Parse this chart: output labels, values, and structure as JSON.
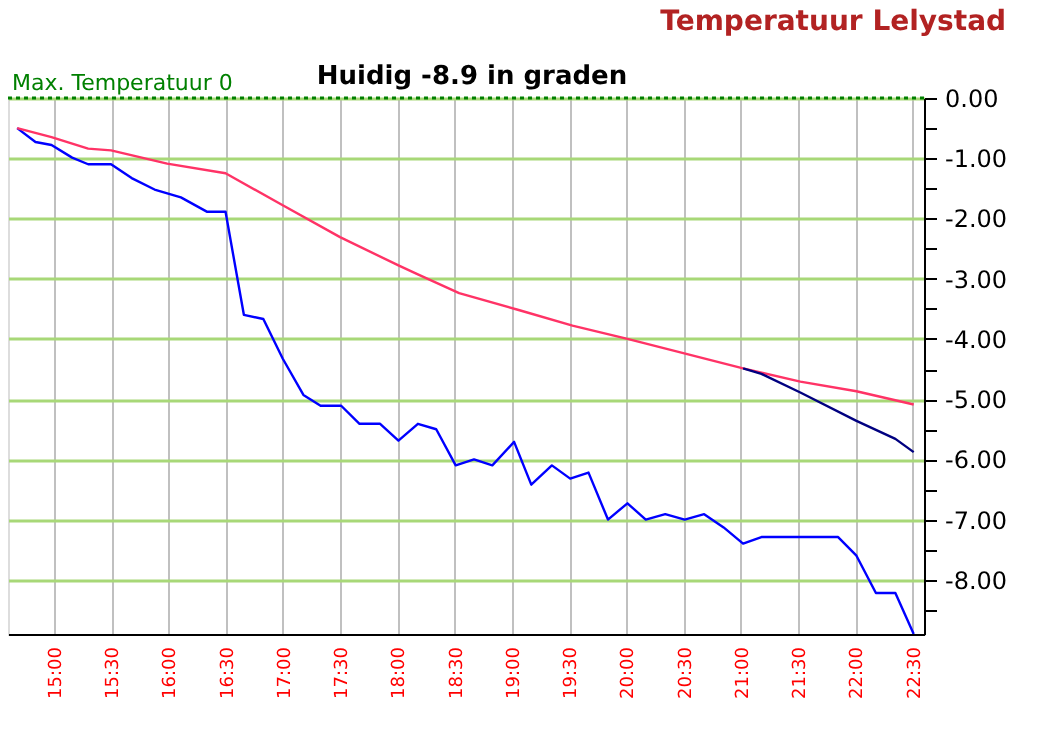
{
  "chart_data": {
    "type": "line",
    "title": "Temperatuur Lelystad",
    "subtitle": "Huidig -8.9 in graden",
    "x": [
      14.68,
      14.84,
      14.98,
      15.16,
      15.3,
      15.5,
      15.68,
      15.88,
      16.11,
      16.34,
      16.5,
      16.66,
      16.83,
      17.0,
      17.18,
      17.33,
      17.51,
      17.67,
      17.85,
      18.01,
      18.18,
      18.34,
      18.51,
      18.67,
      18.83,
      19.02,
      19.17,
      19.35,
      19.51,
      19.67,
      19.84,
      20.01,
      20.17,
      20.34,
      20.51,
      20.68,
      20.85,
      21.02,
      21.18,
      21.85,
      22.01,
      22.18,
      22.35,
      22.51
    ],
    "series": [
      {
        "color": "#0000ff",
        "values": [
          -0.5,
          -0.73,
          -0.78,
          -0.99,
          -1.1,
          -1.1,
          -1.33,
          -1.52,
          -1.65,
          -1.89,
          -1.89,
          -3.6,
          -3.67,
          -4.33,
          -4.93,
          -5.11,
          -5.11,
          -5.41,
          -5.41,
          -5.69,
          -5.41,
          -5.5,
          -6.1,
          -6.0,
          -6.1,
          -5.71,
          -6.42,
          -6.1,
          -6.32,
          -6.22,
          -7.0,
          -6.73,
          -7.0,
          -6.91,
          -7.0,
          -6.91,
          -7.13,
          -7.4,
          -7.29,
          -7.29,
          -7.6,
          -8.22,
          -8.22,
          -8.9
        ]
      },
      {
        "color": "#ff3366",
        "x": [
          14.68,
          14.98,
          15.3,
          15.5,
          15.99,
          16.5,
          16.98,
          17.5,
          18.01,
          18.17,
          18.54,
          19.06,
          19.53,
          20.01,
          21.02,
          21.52,
          22.01,
          22.51
        ],
        "values": [
          -0.5,
          -0.65,
          -0.84,
          -0.87,
          -1.09,
          -1.25,
          -1.76,
          -2.31,
          -2.78,
          -2.92,
          -3.24,
          -3.52,
          -3.78,
          -4.0,
          -4.49,
          -4.71,
          -4.87,
          -5.09
        ]
      },
      {
        "color": "#000080",
        "x": [
          21.02,
          21.18,
          21.52,
          22.01,
          22.35,
          22.51
        ],
        "values": [
          -4.49,
          -4.58,
          -4.89,
          -5.36,
          -5.66,
          -5.88
        ]
      }
    ],
    "xlim": [
      14.6,
      22.6
    ],
    "xticks": [
      {
        "value": 15,
        "label": "15:00"
      },
      {
        "value": 15.5,
        "label": "15:30"
      },
      {
        "value": 16,
        "label": "16:00"
      },
      {
        "value": 16.5,
        "label": "16:30"
      },
      {
        "value": 17,
        "label": "17:00"
      },
      {
        "value": 17.5,
        "label": "17:30"
      },
      {
        "value": 18,
        "label": "18:00"
      },
      {
        "value": 18.5,
        "label": "18:30"
      },
      {
        "value": 19,
        "label": "19:00"
      },
      {
        "value": 19.5,
        "label": "19:30"
      },
      {
        "value": 20,
        "label": "20:00"
      },
      {
        "value": 20.5,
        "label": "20:30"
      },
      {
        "value": 21,
        "label": "21:00"
      },
      {
        "value": 21.5,
        "label": "21:30"
      },
      {
        "value": 22,
        "label": "22:00"
      },
      {
        "value": 22.5,
        "label": "22:30"
      }
    ],
    "ylim": [
      -8.9,
      0
    ],
    "yticks": [
      {
        "value": 0,
        "label": "0.00"
      },
      {
        "value": -0.5,
        "label": null
      },
      {
        "value": -1,
        "label": "-1.00"
      },
      {
        "value": -1.5,
        "label": null
      },
      {
        "value": -2,
        "label": "-2.00"
      },
      {
        "value": -2.5,
        "label": null
      },
      {
        "value": -3,
        "label": "-3.00"
      },
      {
        "value": -3.5,
        "label": null
      },
      {
        "value": -4,
        "label": "-4.00"
      },
      {
        "value": -4.5,
        "label": null
      },
      {
        "value": -5,
        "label": "-5.00"
      },
      {
        "value": -5.5,
        "label": null
      },
      {
        "value": -6,
        "label": "-6.00"
      },
      {
        "value": -6.5,
        "label": null
      },
      {
        "value": -7,
        "label": "-7.00"
      },
      {
        "value": -7.5,
        "label": null
      },
      {
        "value": -8,
        "label": "-8.00"
      },
      {
        "value": -8.5,
        "label": null
      }
    ],
    "ref_lines": [
      {
        "axis": "y",
        "value": 0,
        "label": "Max. Temperatuur 0",
        "color": "#008000",
        "line_style": "dotted"
      }
    ],
    "grid": true,
    "legend": false,
    "marker": "none",
    "line_style": "solid"
  }
}
